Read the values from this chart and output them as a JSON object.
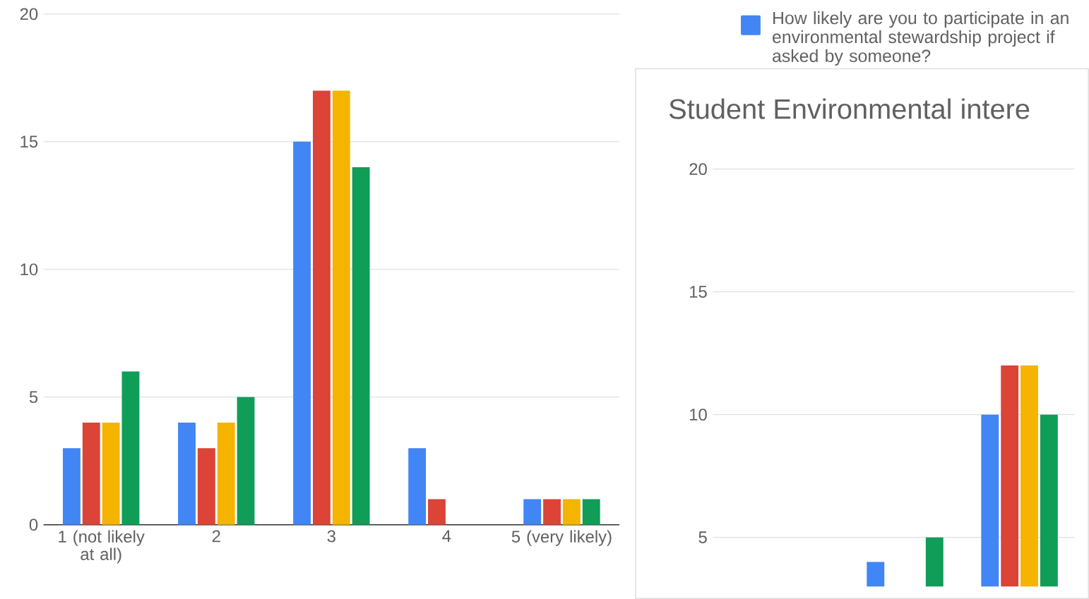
{
  "chart_data": [
    {
      "type": "bar",
      "categories": [
        "1 (not likely at all)",
        "2",
        "3",
        "4",
        "5 (very likely)"
      ],
      "series": [
        {
          "name": "How likely are you to participate in an environmental stewardship project if asked by someone?",
          "color": "#4285f4",
          "values": [
            3,
            4,
            15,
            3,
            1
          ]
        },
        {
          "color": "#db4437",
          "values": [
            4,
            3,
            17,
            1,
            1
          ]
        },
        {
          "color": "#f4b400",
          "values": [
            4,
            4,
            17,
            0,
            1
          ]
        },
        {
          "color": "#0f9d58",
          "values": [
            6,
            5,
            14,
            0,
            1
          ]
        }
      ],
      "ylim": [
        0,
        20
      ],
      "yticks": [
        0,
        5,
        10,
        15,
        20
      ],
      "grid": "y",
      "legend": "right"
    },
    {
      "type": "bar",
      "title": "Student Environmental intere",
      "categories": [
        null,
        null,
        null
      ],
      "series": [
        {
          "color": "#4285f4",
          "values": [
            null,
            4,
            10
          ]
        },
        {
          "color": "#db4437",
          "values": [
            null,
            null,
            12
          ]
        },
        {
          "color": "#f4b400",
          "values": [
            null,
            null,
            12
          ]
        },
        {
          "color": "#0f9d58",
          "values": [
            null,
            5,
            10
          ]
        }
      ],
      "ylim": [
        3,
        20
      ],
      "yticks": [
        5,
        10,
        15,
        20
      ],
      "grid": "y",
      "tick_labels": "y"
    }
  ]
}
